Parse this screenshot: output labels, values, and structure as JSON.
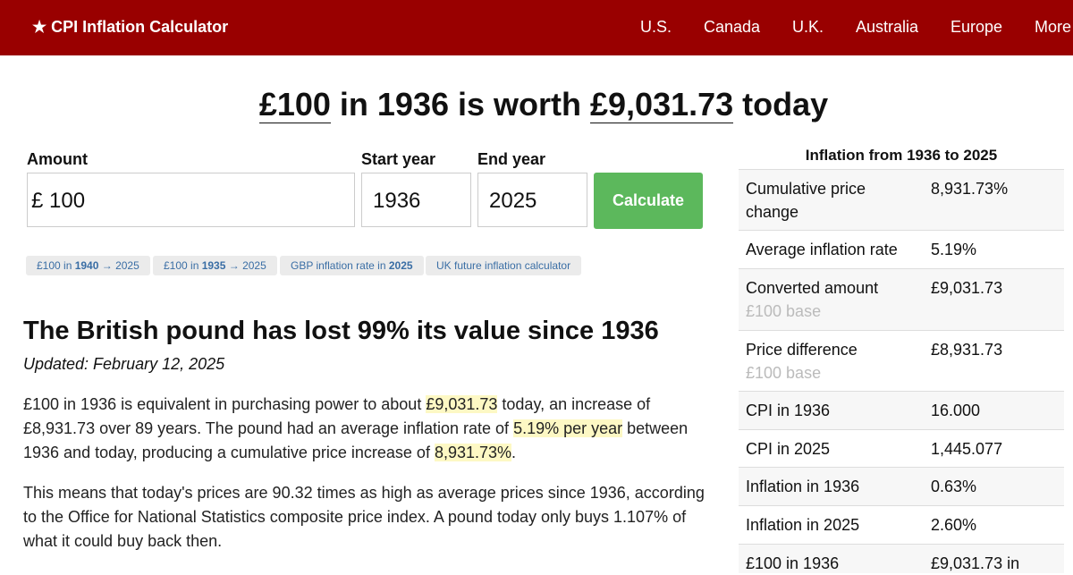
{
  "header": {
    "brand": "★ CPI Inflation Calculator",
    "nav": [
      "U.S.",
      "Canada",
      "U.K.",
      "Australia",
      "Europe",
      "More"
    ]
  },
  "headline": {
    "amount": "£100",
    "middle": " in 1936 is worth ",
    "result": "£9,031.73",
    "end": " today"
  },
  "form": {
    "amount_label": "Amount",
    "currency": "£",
    "amount": "100",
    "start_label": "Start year",
    "start": "1936",
    "end_label": "End year",
    "end": "2025",
    "button": "Calculate"
  },
  "chips": [
    [
      "£100 in ",
      "1940",
      " → 2025"
    ],
    [
      "£100 in ",
      "1935",
      " → 2025"
    ],
    [
      "GBP inflation rate in ",
      "2025"
    ],
    [
      "UK future inflation calculator"
    ]
  ],
  "article": {
    "heading": "The British pound has lost 99% its value since 1936",
    "updated": "Updated: February 12, 2025",
    "p1": [
      "£100 in 1936 is equivalent in purchasing power to about ",
      "£9,031.73",
      " today, an increase of £8,931.73 over 89 years. The pound had an average inflation rate of ",
      "5.19% per year",
      " between 1936 and today, producing a cumulative price increase of ",
      "8,931.73%",
      "."
    ],
    "p2": "This means that today's prices are 90.32 times as high as average prices since 1936, according to the Office for National Statistics composite price index. A pound today only buys 1.107% of what it could buy back then."
  },
  "sidebar": {
    "title": "Inflation from 1936 to 2025",
    "rows": [
      [
        "Cumulative price change",
        "8,931.73%"
      ],
      [
        "Average inflation rate",
        "5.19%"
      ],
      [
        "Converted amount",
        "£9,031.73",
        "£100 base"
      ],
      [
        "Price difference",
        "£8,931.73",
        "£100 base"
      ],
      [
        "CPI in 1936",
        "16.000"
      ],
      [
        "CPI in 2025",
        "1,445.077"
      ],
      [
        "Inflation in 1936",
        "0.63%"
      ],
      [
        "Inflation in 2025",
        "2.60%"
      ],
      [
        "£100 in 1936",
        "£9,031.73 in"
      ]
    ]
  }
}
